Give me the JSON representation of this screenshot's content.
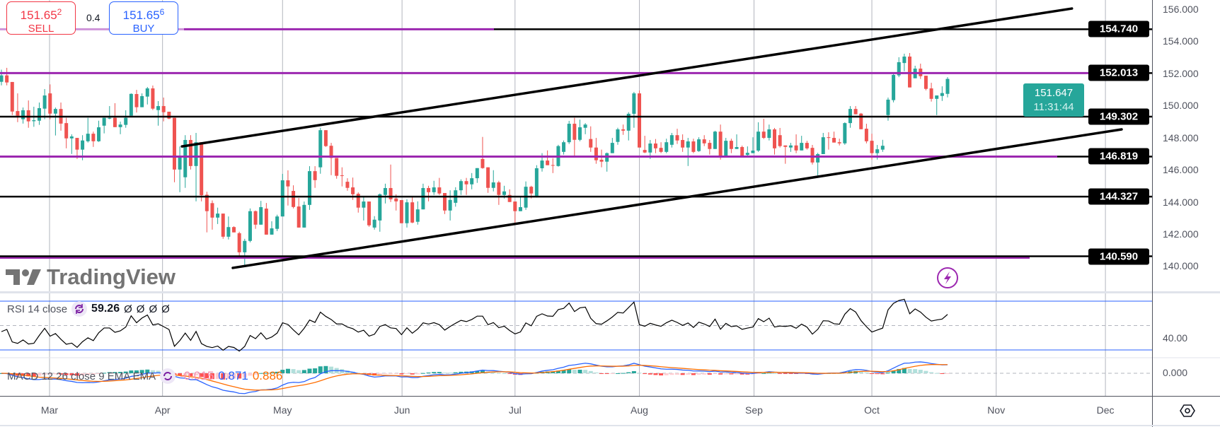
{
  "trade": {
    "sell": {
      "price_main": "151.65",
      "price_sup": "2",
      "label": "SELL"
    },
    "spread": "0.4",
    "buy": {
      "price_main": "151.65",
      "price_sup": "6",
      "label": "BUY"
    }
  },
  "price_axis": {
    "ticks": [
      "156.000",
      "154.000",
      "152.000",
      "150.000",
      "148.000",
      "146.000",
      "144.000",
      "142.000",
      "140.000"
    ],
    "levels": [
      {
        "value": 154.74,
        "label": "154.740",
        "line": "purple-then-black"
      },
      {
        "value": 152.013,
        "label": "152.013",
        "line": "purple-then-black"
      },
      {
        "value": 149.302,
        "label": "149.302",
        "line": "black"
      },
      {
        "value": 146.819,
        "label": "146.819",
        "line": "purple-then-black"
      },
      {
        "value": 144.327,
        "label": "144.327",
        "line": "black"
      },
      {
        "value": 140.59,
        "label": "140.590",
        "line": "black-over-purple"
      }
    ],
    "current": {
      "price": "151.647",
      "countdown": "11:31:44"
    }
  },
  "rsi": {
    "title": "RSI 14 close",
    "value": "59.26",
    "extra": [
      "Ø",
      "Ø",
      "Ø",
      "Ø"
    ],
    "axis_label": "40.00",
    "bands": [
      70,
      50,
      30
    ]
  },
  "macd": {
    "title": "MACD 12 26 close 9 EMA EMA",
    "histogram": "-0.015",
    "macd": "0.871",
    "signal": "0.886",
    "axis_label": "0.000"
  },
  "watermark": "TradingView",
  "time_axis": {
    "months": [
      {
        "label": "Mar",
        "bar": 8.9
      },
      {
        "label": "Apr",
        "bar": 29.8
      },
      {
        "label": "May",
        "bar": 52.0
      },
      {
        "label": "Jun",
        "bar": 74.1
      },
      {
        "label": "Jul",
        "bar": 95.0
      },
      {
        "label": "Aug",
        "bar": 118.0
      },
      {
        "label": "Sep",
        "bar": 139.2
      },
      {
        "label": "Oct",
        "bar": 161.0
      },
      {
        "label": "Nov",
        "bar": 184.0
      },
      {
        "label": "Dec",
        "bar": 204.2
      }
    ]
  },
  "colors": {
    "up": "#26a69a",
    "down": "#ef5350",
    "level_purple": "#9c27b0",
    "level_black": "#000000",
    "macd": "#2962ff",
    "signal": "#ff6d00",
    "rsi_band": "#2962ff",
    "sell": "#f23645",
    "buy": "#2962ff"
  },
  "chart_data": {
    "type": "candlestick",
    "title": "",
    "ylim": [
      139.5,
      156.1
    ],
    "trendlines": [
      {
        "name": "channel-upper",
        "from": [
          33.4,
          147.45
        ],
        "to": [
          198.0,
          156.03
        ]
      },
      {
        "name": "channel-lower",
        "from": [
          42.8,
          139.89
        ],
        "to": [
          207.2,
          148.51
        ]
      }
    ],
    "ohlc": [
      [
        151.47,
        152.23,
        151.25,
        151.87
      ],
      [
        151.87,
        152.34,
        151.25,
        151.43
      ],
      [
        151.46,
        151.46,
        149.4,
        149.62
      ],
      [
        149.65,
        150.75,
        148.96,
        149.36
      ],
      [
        149.14,
        149.87,
        148.87,
        149.7
      ],
      [
        149.7,
        150.31,
        148.61,
        149.01
      ],
      [
        149.02,
        149.92,
        148.67,
        149.08
      ],
      [
        149.05,
        150.18,
        148.79,
        149.83
      ],
      [
        149.8,
        151.02,
        149.14,
        150.62
      ],
      [
        150.75,
        151.31,
        149.14,
        149.49
      ],
      [
        149.49,
        149.87,
        148.13,
        149.78
      ],
      [
        149.78,
        150.18,
        148.43,
        148.87
      ],
      [
        148.9,
        149.23,
        147.33,
        147.95
      ],
      [
        147.95,
        148.2,
        146.98,
        148.07
      ],
      [
        147.98,
        147.98,
        146.67,
        147.25
      ],
      [
        147.25,
        148.15,
        146.59,
        147.82
      ],
      [
        147.77,
        149.23,
        147.69,
        148.24
      ],
      [
        148.24,
        148.37,
        147.42,
        147.77
      ],
      [
        147.77,
        149.05,
        147.73,
        148.64
      ],
      [
        148.74,
        149.23,
        148.26,
        149.23
      ],
      [
        149.18,
        149.96,
        149.14,
        149.23
      ],
      [
        149.23,
        150.14,
        148.65,
        148.65
      ],
      [
        148.65,
        148.99,
        148.21,
        148.81
      ],
      [
        148.79,
        149.7,
        148.61,
        149.23
      ],
      [
        149.36,
        150.75,
        149.36,
        150.72
      ],
      [
        150.71,
        150.97,
        149.56,
        149.89
      ],
      [
        149.89,
        150.75,
        149.89,
        150.58
      ],
      [
        150.55,
        151.15,
        150.06,
        151.06
      ],
      [
        151.06,
        151.24,
        149.71,
        149.8
      ],
      [
        149.71,
        150.27,
        148.74,
        149.96
      ],
      [
        149.96,
        150.49,
        149.01,
        149.58
      ],
      [
        149.61,
        149.61,
        149.14,
        149.18
      ],
      [
        149.23,
        149.23,
        145.22,
        146.01
      ],
      [
        146.01,
        147.45,
        144.6,
        146.76
      ],
      [
        145.53,
        148.15,
        144.87,
        147.85
      ],
      [
        147.85,
        148.15,
        146.01,
        146.23
      ],
      [
        146.23,
        148.29,
        144.03,
        147.71
      ],
      [
        147.71,
        147.71,
        144.03,
        144.41
      ],
      [
        144.44,
        144.63,
        142.1,
        143.42
      ],
      [
        143.92,
        144.09,
        142.27,
        143.02
      ],
      [
        143.02,
        143.64,
        142.62,
        143.27
      ],
      [
        143.27,
        143.27,
        141.7,
        141.83
      ],
      [
        141.83,
        143.09,
        141.66,
        142.43
      ],
      [
        142.43,
        142.48,
        142.1,
        142.1
      ],
      [
        142.05,
        142.14,
        140.64,
        140.86
      ],
      [
        140.86,
        141.7,
        140.03,
        141.57
      ],
      [
        141.57,
        143.59,
        141.48,
        143.42
      ],
      [
        143.42,
        143.46,
        142.32,
        142.58
      ],
      [
        142.58,
        144.06,
        142.58,
        143.67
      ],
      [
        143.58,
        143.93,
        141.96,
        141.96
      ],
      [
        141.96,
        142.79,
        141.96,
        142.35
      ],
      [
        142.32,
        143.2,
        142.18,
        143.09
      ],
      [
        143.09,
        145.74,
        143.09,
        145.34
      ],
      [
        145.34,
        145.96,
        143.77,
        144.96
      ],
      [
        144.68,
        145.03,
        143.59,
        143.68
      ],
      [
        143.71,
        144.24,
        142.4,
        142.4
      ],
      [
        142.4,
        144.02,
        142.4,
        143.81
      ],
      [
        143.81,
        146.22,
        143.5,
        145.91
      ],
      [
        145.91,
        146.22,
        144.87,
        145.35
      ],
      [
        146.15,
        148.61,
        145.75,
        148.46
      ],
      [
        148.46,
        148.46,
        147.42,
        147.47
      ],
      [
        147.49,
        147.67,
        145.66,
        146.73
      ],
      [
        146.73,
        146.73,
        145.44,
        145.62
      ],
      [
        145.65,
        146.15,
        144.96,
        145.62
      ],
      [
        145.25,
        145.47,
        144.69,
        144.87
      ],
      [
        144.9,
        145.51,
        144.12,
        144.47
      ],
      [
        144.5,
        144.59,
        143.33,
        143.64
      ],
      [
        143.64,
        144.3,
        142.84,
        144.02
      ],
      [
        144.02,
        144.02,
        142.45,
        142.54
      ],
      [
        142.4,
        143.11,
        142.27,
        142.89
      ],
      [
        142.84,
        144.52,
        142.14,
        144.47
      ],
      [
        144.43,
        145.13,
        143.9,
        144.86
      ],
      [
        144.86,
        146.32,
        143.99,
        144.16
      ],
      [
        144.21,
        144.47,
        143.46,
        144.03
      ],
      [
        144.11,
        144.11,
        142.67,
        142.67
      ],
      [
        142.67,
        144.16,
        142.4,
        143.97
      ],
      [
        143.97,
        144.3,
        142.67,
        142.71
      ],
      [
        142.76,
        144.03,
        142.58,
        143.53
      ],
      [
        143.53,
        145.13,
        143.53,
        144.86
      ],
      [
        144.86,
        145.0,
        144.03,
        144.6
      ],
      [
        144.6,
        145.31,
        144.43,
        144.9
      ],
      [
        144.9,
        145.49,
        144.43,
        144.52
      ],
      [
        144.55,
        144.55,
        143.24,
        143.46
      ],
      [
        143.46,
        144.72,
        142.84,
        144.12
      ],
      [
        143.94,
        144.91,
        143.7,
        144.72
      ],
      [
        144.72,
        145.4,
        144.43,
        145.29
      ],
      [
        145.29,
        145.49,
        144.43,
        145.09
      ],
      [
        145.09,
        145.79,
        144.78,
        145.47
      ],
      [
        145.47,
        146.1,
        145.18,
        146.1
      ],
      [
        146.67,
        148.04,
        146.06,
        146.1
      ],
      [
        146.15,
        146.15,
        144.56,
        144.87
      ],
      [
        144.87,
        145.97,
        144.65,
        145.21
      ],
      [
        145.21,
        145.31,
        143.81,
        144.43
      ],
      [
        144.43,
        145.0,
        144.21,
        144.65
      ],
      [
        144.43,
        144.78,
        143.99,
        143.99
      ],
      [
        144.02,
        144.02,
        142.67,
        143.42
      ],
      [
        143.42,
        144.3,
        143.42,
        143.67
      ],
      [
        143.64,
        145.27,
        143.5,
        144.94
      ],
      [
        144.94,
        145.0,
        144.21,
        144.52
      ],
      [
        144.38,
        146.28,
        144.27,
        146.09
      ],
      [
        146.09,
        147.03,
        145.88,
        146.57
      ],
      [
        146.57,
        147.2,
        146.28,
        146.28
      ],
      [
        146.29,
        146.72,
        145.79,
        146.25
      ],
      [
        146.23,
        147.55,
        146.19,
        147.47
      ],
      [
        147.11,
        147.82,
        146.94,
        147.71
      ],
      [
        147.71,
        149.04,
        147.6,
        148.86
      ],
      [
        148.86,
        149.23,
        146.88,
        147.86
      ],
      [
        147.86,
        149.12,
        147.77,
        148.64
      ],
      [
        148.61,
        148.9,
        148.21,
        148.81
      ],
      [
        147.91,
        148.7,
        147.11,
        147.38
      ],
      [
        147.38,
        147.98,
        146.37,
        146.59
      ],
      [
        146.62,
        147.25,
        146.15,
        146.5
      ],
      [
        146.5,
        147.07,
        145.88,
        147.03
      ],
      [
        147.03,
        147.98,
        147.03,
        147.67
      ],
      [
        147.73,
        148.61,
        147.55,
        148.51
      ],
      [
        148.51,
        148.81,
        148.17,
        148.43
      ],
      [
        148.43,
        149.58,
        147.82,
        149.48
      ],
      [
        149.48,
        150.84,
        148.61,
        150.75
      ],
      [
        150.75,
        150.93,
        147.38,
        147.38
      ],
      [
        147.23,
        148.11,
        147.03,
        147.07
      ],
      [
        147.07,
        147.85,
        146.67,
        147.63
      ],
      [
        147.63,
        147.91,
        147.03,
        147.33
      ],
      [
        147.36,
        147.71,
        147.03,
        147.11
      ],
      [
        147.11,
        147.93,
        147.03,
        147.71
      ],
      [
        147.55,
        148.29,
        147.38,
        148.15
      ],
      [
        148.15,
        148.55,
        147.6,
        147.82
      ],
      [
        147.85,
        148.2,
        147.11,
        147.38
      ],
      [
        147.38,
        147.98,
        146.23,
        147.76
      ],
      [
        147.76,
        147.93,
        147.03,
        147.11
      ],
      [
        147.16,
        148.02,
        147.11,
        147.89
      ],
      [
        147.89,
        148.15,
        147.47,
        147.64
      ],
      [
        147.67,
        147.85,
        146.94,
        147.29
      ],
      [
        147.29,
        148.42,
        147.29,
        148.37
      ],
      [
        148.37,
        148.81,
        146.63,
        146.88
      ],
      [
        146.88,
        147.98,
        146.88,
        147.8
      ],
      [
        147.8,
        147.93,
        147.03,
        147.29
      ],
      [
        147.29,
        148.2,
        147.29,
        147.41
      ],
      [
        147.41,
        147.5,
        146.88,
        146.88
      ],
      [
        146.92,
        147.45,
        146.88,
        147.05
      ],
      [
        147.03,
        148.02,
        147.03,
        147.19
      ],
      [
        147.19,
        148.95,
        147.11,
        148.37
      ],
      [
        148.37,
        149.17,
        147.91,
        147.98
      ],
      [
        147.98,
        148.81,
        147.82,
        148.51
      ],
      [
        148.51,
        148.6,
        146.94,
        147.33
      ],
      [
        148.15,
        148.6,
        147.38,
        147.47
      ],
      [
        147.51,
        147.51,
        146.37,
        147.42
      ],
      [
        147.38,
        147.67,
        147.11,
        147.51
      ],
      [
        147.51,
        148.2,
        147.03,
        147.2
      ],
      [
        147.2,
        148.11,
        147.2,
        147.67
      ],
      [
        147.67,
        147.8,
        147.25,
        147.33
      ],
      [
        147.36,
        147.54,
        146.32,
        146.45
      ],
      [
        146.45,
        147.05,
        145.62,
        146.97
      ],
      [
        146.97,
        148.29,
        146.97,
        148.02
      ],
      [
        148.02,
        148.33,
        147.25,
        147.99
      ],
      [
        147.98,
        148.37,
        147.69,
        147.69
      ],
      [
        147.71,
        147.93,
        147.51,
        147.64
      ],
      [
        147.64,
        148.95,
        147.55,
        148.9
      ],
      [
        148.9,
        149.96,
        148.61,
        149.78
      ],
      [
        149.78,
        149.96,
        149.45,
        149.45
      ],
      [
        149.49,
        149.53,
        148.52,
        148.52
      ],
      [
        148.55,
        148.86,
        147.64,
        147.77
      ],
      [
        147.8,
        148.24,
        146.63,
        147.03
      ],
      [
        147.03,
        147.54,
        146.63,
        147.27
      ],
      [
        147.25,
        147.86,
        147.11,
        147.49
      ],
      [
        149.4,
        150.49,
        149.05,
        150.36
      ],
      [
        150.33,
        151.98,
        150.19,
        151.9
      ],
      [
        151.87,
        153.0,
        151.76,
        152.69
      ],
      [
        152.64,
        153.22,
        152.13,
        153.04
      ],
      [
        153.04,
        153.26,
        151.12,
        151.12
      ],
      [
        151.69,
        152.47,
        151.69,
        152.29
      ],
      [
        152.29,
        152.6,
        151.65,
        151.82
      ],
      [
        151.85,
        151.85,
        150.94,
        151.03
      ],
      [
        151.06,
        151.41,
        150.24,
        150.41
      ],
      [
        150.41,
        150.62,
        149.4,
        150.62
      ],
      [
        150.59,
        151.19,
        150.28,
        150.77
      ],
      [
        150.72,
        151.76,
        150.5,
        151.65
      ]
    ]
  }
}
